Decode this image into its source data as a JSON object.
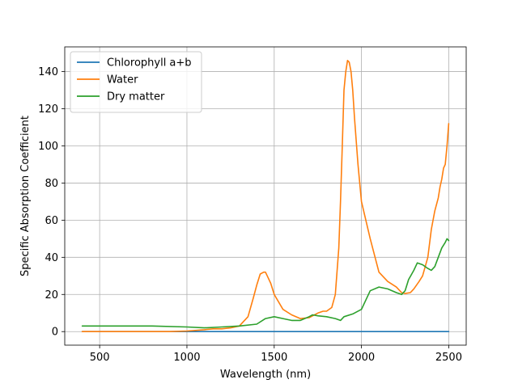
{
  "chart_data": {
    "type": "line",
    "xlabel": "Wavelength (nm)",
    "ylabel": "Specific Absorption Coefficient",
    "xlim": [
      300,
      2600
    ],
    "ylim": [
      -7.3,
      153.3
    ],
    "xticks": [
      500,
      1000,
      1500,
      2000,
      2500
    ],
    "yticks": [
      0,
      20,
      40,
      60,
      80,
      100,
      120,
      140
    ],
    "grid": true,
    "legend_position": "top-left",
    "series": [
      {
        "name": "Chlorophyll a+b",
        "color": "#1f77b4",
        "x": [
          400,
          500,
          600,
          700,
          800,
          1000,
          1500,
          2000,
          2500
        ],
        "y": [
          0,
          0,
          0,
          0,
          0,
          0,
          0,
          0,
          0
        ]
      },
      {
        "name": "Water",
        "color": "#ff7f0e",
        "x": [
          400,
          500,
          600,
          700,
          800,
          900,
          1000,
          1100,
          1150,
          1200,
          1250,
          1300,
          1350,
          1380,
          1400,
          1420,
          1440,
          1450,
          1460,
          1480,
          1500,
          1550,
          1600,
          1650,
          1700,
          1750,
          1780,
          1800,
          1830,
          1850,
          1870,
          1880,
          1890,
          1900,
          1910,
          1920,
          1930,
          1940,
          1950,
          1960,
          1980,
          2000,
          2050,
          2100,
          2150,
          2200,
          2230,
          2250,
          2280,
          2300,
          2330,
          2350,
          2380,
          2400,
          2420,
          2440,
          2450,
          2460,
          2470,
          2480,
          2490,
          2500
        ],
        "y": [
          0,
          0,
          0,
          0,
          0,
          0,
          0.3,
          1,
          1.5,
          1.5,
          2,
          3,
          8,
          18,
          25,
          31,
          32,
          32,
          30,
          26,
          20,
          12,
          9,
          7,
          7.5,
          10,
          11,
          11,
          13,
          20,
          45,
          70,
          100,
          130,
          140,
          146,
          145,
          140,
          130,
          115,
          90,
          70,
          50,
          32,
          27,
          24,
          21,
          20.5,
          21,
          23,
          27,
          30,
          40,
          55,
          65,
          72,
          78,
          82,
          88,
          90,
          100,
          112
        ]
      },
      {
        "name": "Dry matter",
        "color": "#2ca02c",
        "x": [
          400,
          600,
          800,
          1000,
          1100,
          1200,
          1300,
          1400,
          1450,
          1500,
          1550,
          1600,
          1650,
          1700,
          1720,
          1750,
          1800,
          1850,
          1880,
          1900,
          1950,
          2000,
          2050,
          2100,
          2150,
          2200,
          2230,
          2250,
          2270,
          2300,
          2320,
          2350,
          2380,
          2400,
          2420,
          2440,
          2460,
          2480,
          2490,
          2500
        ],
        "y": [
          3,
          3,
          3,
          2.5,
          2,
          2.5,
          3,
          4,
          7,
          8,
          7,
          6,
          6,
          8,
          9,
          8.5,
          8,
          7,
          6,
          8,
          9.5,
          12,
          22,
          24,
          23,
          21,
          20,
          22,
          28,
          33,
          37,
          36,
          34,
          33,
          35,
          40,
          45,
          48,
          50,
          49
        ]
      }
    ]
  }
}
